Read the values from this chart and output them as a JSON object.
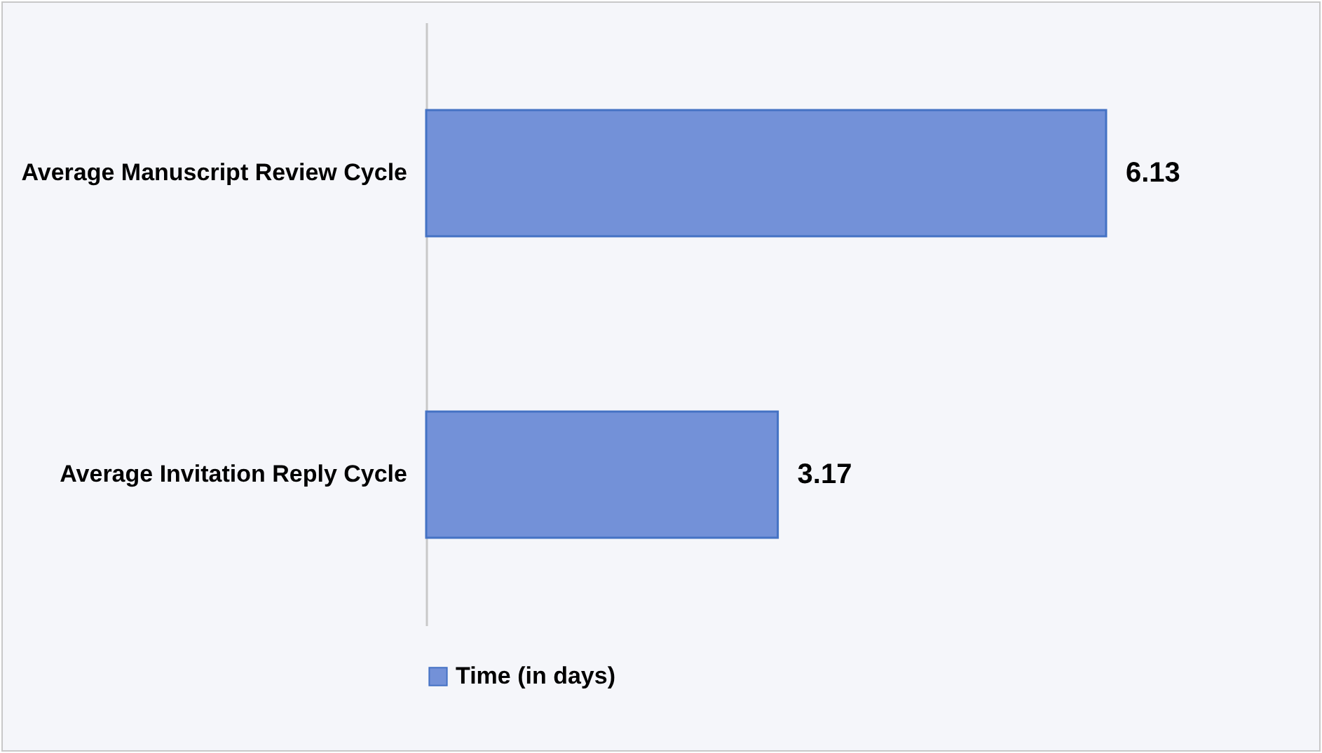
{
  "chart_data": {
    "type": "bar",
    "orientation": "horizontal",
    "categories": [
      "Average Manuscript Review Cycle",
      "Average Invitation Reply Cycle"
    ],
    "series": [
      {
        "name": "Time (in days)",
        "color": "#7391d8",
        "values": [
          6.13,
          3.17
        ]
      }
    ],
    "data_labels": true,
    "legend": "bottom"
  }
}
